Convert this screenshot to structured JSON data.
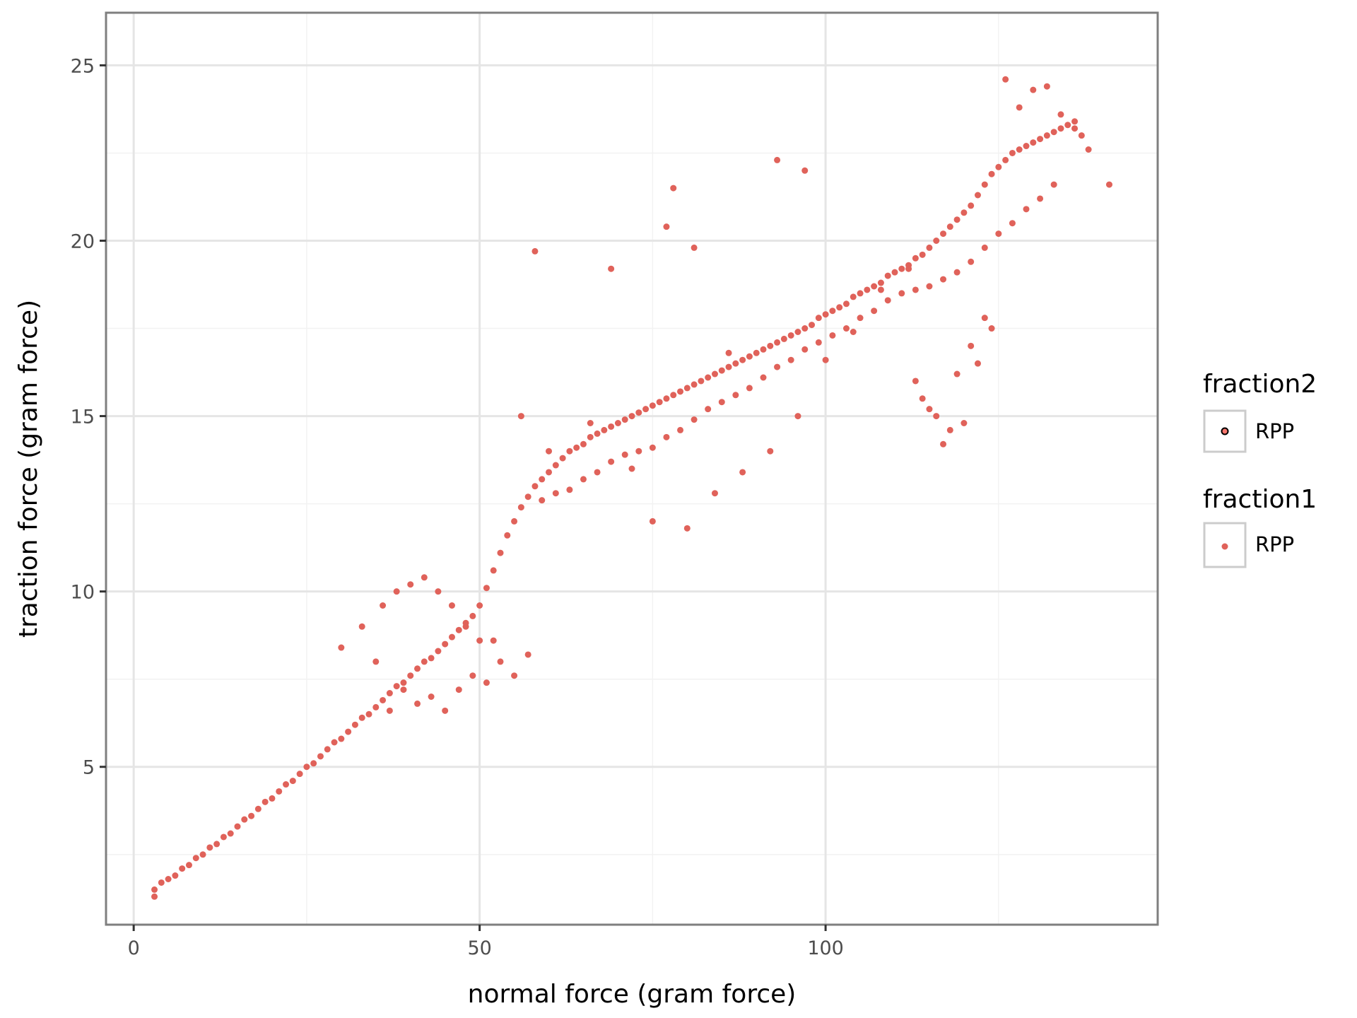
{
  "chart_data": {
    "type": "scatter",
    "title": "",
    "xlabel": "normal force (gram force)",
    "ylabel": "traction force (gram force)",
    "xlim": [
      -4,
      148
    ],
    "ylim": [
      0.5,
      26.5
    ],
    "x_ticks": [
      0,
      50,
      100
    ],
    "x_tick_labels": [
      "0",
      "50",
      "100"
    ],
    "y_ticks": [
      5,
      10,
      15,
      20,
      25
    ],
    "y_tick_labels": [
      "5",
      "10",
      "15",
      "20",
      "25"
    ],
    "grid": true,
    "legend_position": "right",
    "legends": [
      {
        "title": "fraction2",
        "entries": [
          {
            "label": "RPP",
            "color": "#000000",
            "fill": "#f8766d"
          }
        ]
      },
      {
        "title": "fraction1",
        "entries": [
          {
            "label": "RPP",
            "color": "#e0625a"
          }
        ]
      }
    ],
    "series": [
      {
        "color": "#e0625a",
        "x": [
          3,
          3,
          4,
          5,
          6,
          7,
          8,
          9,
          10,
          11,
          12,
          13,
          14,
          15,
          16,
          17,
          18,
          19,
          20,
          21,
          22,
          23,
          24,
          25,
          26,
          27,
          28,
          29,
          30,
          31,
          32,
          33,
          34,
          35,
          36,
          37,
          38,
          39,
          40,
          41,
          42,
          43,
          44,
          45,
          46,
          47,
          48,
          49,
          50,
          51,
          52,
          53,
          54,
          55,
          56,
          57,
          58,
          59,
          60,
          61,
          62,
          63,
          64,
          65,
          66,
          67,
          68,
          69,
          70,
          71,
          72,
          73,
          74,
          75,
          76,
          77,
          78,
          79,
          80,
          81,
          82,
          83,
          84,
          85,
          86,
          87,
          88,
          89,
          90,
          91,
          92,
          93,
          94,
          95,
          96,
          97,
          98,
          99,
          100,
          101,
          102,
          103,
          104,
          105,
          106,
          107,
          108,
          109,
          110,
          111,
          112,
          113,
          114,
          115,
          116,
          117,
          118,
          119,
          120,
          121,
          122,
          123,
          124,
          125,
          126,
          127,
          128,
          129,
          130,
          131,
          132,
          133,
          134,
          135,
          136,
          137,
          138,
          141,
          30,
          33,
          36,
          38,
          40,
          42,
          44,
          46,
          48,
          50,
          52,
          35,
          39,
          43,
          47,
          51,
          55,
          37,
          41,
          45,
          49,
          53,
          57,
          59,
          61,
          63,
          65,
          67,
          69,
          71,
          73,
          75,
          77,
          79,
          81,
          83,
          85,
          87,
          89,
          91,
          93,
          95,
          97,
          99,
          101,
          103,
          105,
          107,
          109,
          111,
          113,
          115,
          117,
          119,
          121,
          123,
          125,
          127,
          129,
          131,
          133,
          58,
          77,
          78,
          93,
          97,
          81,
          86,
          116,
          117,
          120,
          122,
          124,
          113,
          114,
          115,
          118,
          119,
          121,
          123,
          132,
          126,
          128,
          130,
          134,
          136,
          56,
          60,
          66,
          69,
          72,
          75,
          80,
          84,
          88,
          92,
          96,
          100,
          104,
          108,
          112
        ],
        "y": [
          1.5,
          1.3,
          1.7,
          1.8,
          1.9,
          2.1,
          2.2,
          2.4,
          2.5,
          2.7,
          2.8,
          3.0,
          3.1,
          3.3,
          3.5,
          3.6,
          3.8,
          4.0,
          4.1,
          4.3,
          4.5,
          4.6,
          4.8,
          5.0,
          5.1,
          5.3,
          5.5,
          5.7,
          5.8,
          6.0,
          6.2,
          6.4,
          6.5,
          6.7,
          6.9,
          7.1,
          7.3,
          7.4,
          7.6,
          7.8,
          8.0,
          8.1,
          8.3,
          8.5,
          8.7,
          8.9,
          9.1,
          9.3,
          9.6,
          10.1,
          10.6,
          11.1,
          11.6,
          12.0,
          12.4,
          12.7,
          13.0,
          13.2,
          13.4,
          13.6,
          13.8,
          14.0,
          14.1,
          14.2,
          14.4,
          14.5,
          14.6,
          14.7,
          14.8,
          14.9,
          15.0,
          15.1,
          15.2,
          15.3,
          15.4,
          15.5,
          15.6,
          15.7,
          15.8,
          15.9,
          16.0,
          16.1,
          16.2,
          16.3,
          16.4,
          16.5,
          16.6,
          16.7,
          16.8,
          16.9,
          17.0,
          17.1,
          17.2,
          17.3,
          17.4,
          17.5,
          17.6,
          17.8,
          17.9,
          18.0,
          18.1,
          18.2,
          18.4,
          18.5,
          18.6,
          18.7,
          18.8,
          19.0,
          19.1,
          19.2,
          19.3,
          19.5,
          19.6,
          19.8,
          20.0,
          20.2,
          20.4,
          20.6,
          20.8,
          21.0,
          21.3,
          21.6,
          21.9,
          22.1,
          22.3,
          22.5,
          22.6,
          22.7,
          22.8,
          22.9,
          23.0,
          23.1,
          23.2,
          23.3,
          23.2,
          23.0,
          22.6,
          21.6,
          8.4,
          9.0,
          9.6,
          10.0,
          10.2,
          10.4,
          10.0,
          9.6,
          9.0,
          8.6,
          8.6,
          8.0,
          7.2,
          7.0,
          7.2,
          7.4,
          7.6,
          6.6,
          6.8,
          6.6,
          7.6,
          8.0,
          8.2,
          12.6,
          12.8,
          12.9,
          13.2,
          13.4,
          13.7,
          13.9,
          14.0,
          14.1,
          14.4,
          14.6,
          14.9,
          15.2,
          15.4,
          15.6,
          15.8,
          16.1,
          16.4,
          16.6,
          16.9,
          17.1,
          17.3,
          17.5,
          17.8,
          18.0,
          18.3,
          18.5,
          18.6,
          18.7,
          18.9,
          19.1,
          19.4,
          19.8,
          20.2,
          20.5,
          20.9,
          21.2,
          21.6,
          19.7,
          20.4,
          21.5,
          22.3,
          22.0,
          19.8,
          16.8,
          15.0,
          14.2,
          14.8,
          16.5,
          17.5,
          16.0,
          15.5,
          15.2,
          14.6,
          16.2,
          17.0,
          17.8,
          24.4,
          24.6,
          23.8,
          24.3,
          23.6,
          23.4,
          15.0,
          14.0,
          14.8,
          19.2,
          13.5,
          12.0,
          11.8,
          12.8,
          13.4,
          14.0,
          15.0,
          16.6,
          17.4,
          18.6,
          19.2
        ]
      }
    ]
  }
}
